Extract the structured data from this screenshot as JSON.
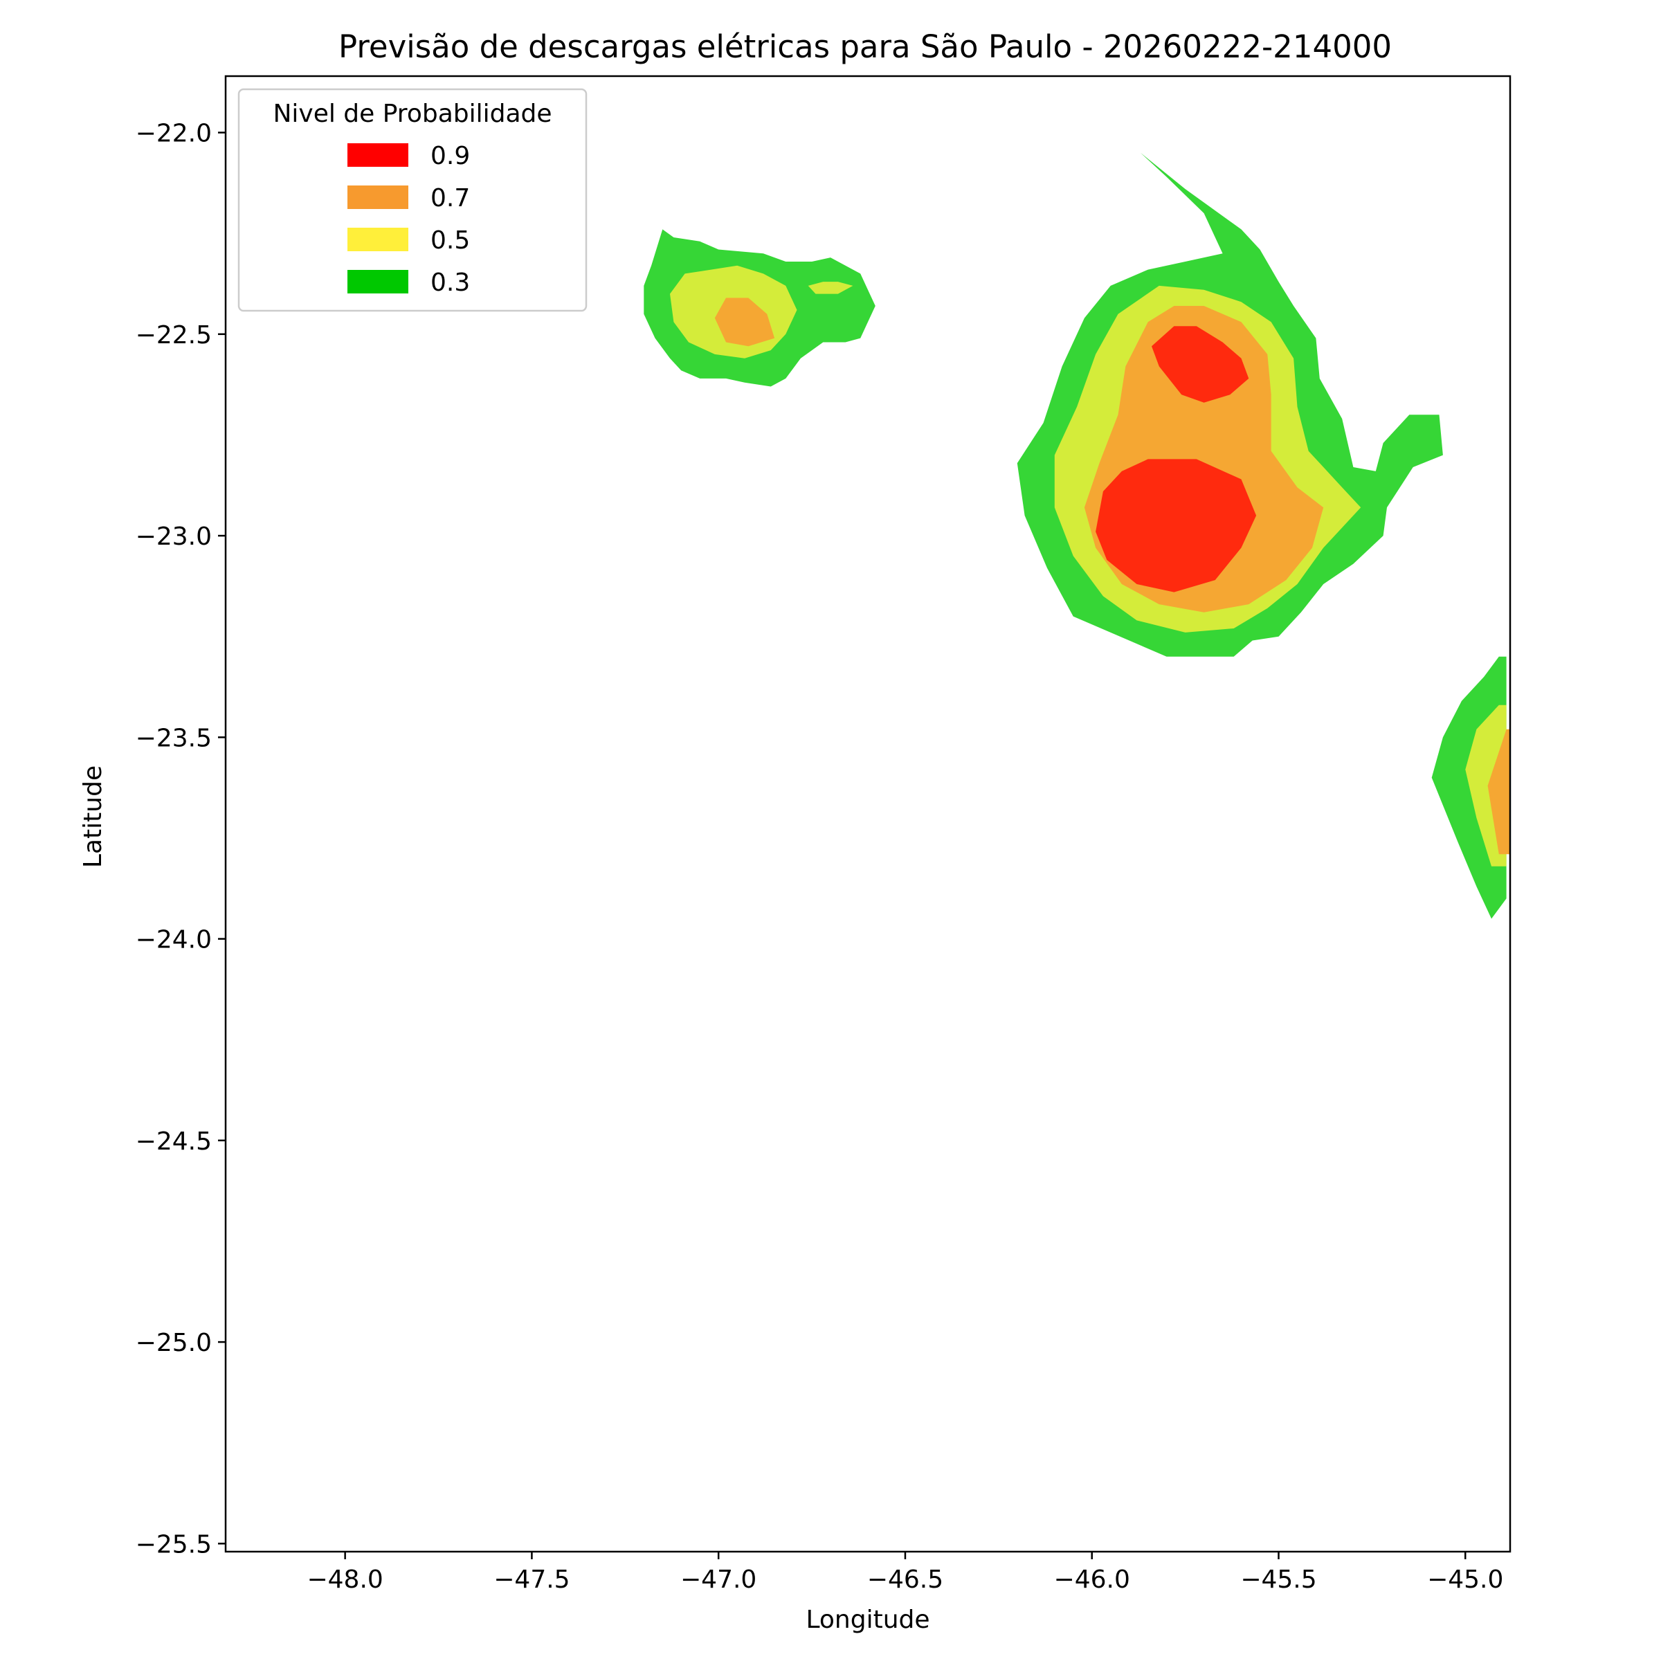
{
  "chart_data": {
    "type": "contour",
    "title": "Previsão de descargas elétricas para São Paulo - 20260222-214000",
    "xlabel": "Longitude",
    "ylabel": "Latitude",
    "xlim": [
      -48.32,
      -44.88
    ],
    "ylim": [
      -25.52,
      -21.86
    ],
    "xticks": [
      -48.0,
      -47.5,
      -47.0,
      -46.5,
      -46.0,
      -45.5,
      -45.0
    ],
    "xtick_labels": [
      "−48.0",
      "−47.5",
      "−47.0",
      "−46.5",
      "−46.0",
      "−45.5",
      "−45.0"
    ],
    "yticks": [
      -22.0,
      -22.5,
      -23.0,
      -23.5,
      -24.0,
      -24.5,
      -25.0,
      -25.5
    ],
    "ytick_labels": [
      "−22.0",
      "−22.5",
      "−23.0",
      "−23.5",
      "−24.0",
      "−24.5",
      "−25.0",
      "−25.5"
    ],
    "grid": false,
    "legend": {
      "title": "Nivel de Probabilidade",
      "placement": "top-left",
      "entries": [
        {
          "label": "0.9",
          "color": "#ff0000"
        },
        {
          "label": "0.7",
          "color": "#f79a2e"
        },
        {
          "label": "0.5",
          "color": "#ffef3a"
        },
        {
          "label": "0.3",
          "color": "#00c800"
        }
      ]
    },
    "level_fill_colors": {
      "0.3": "#36d636",
      "0.5": "#d4ec3a",
      "0.7": "#f5a733",
      "0.9": "#ff2a0e"
    },
    "regions": [
      {
        "name": "campinas-cell",
        "level": 0.3,
        "points": [
          [
            -47.15,
            -22.24
          ],
          [
            -47.12,
            -22.26
          ],
          [
            -47.05,
            -22.27
          ],
          [
            -47.0,
            -22.29
          ],
          [
            -46.88,
            -22.3
          ],
          [
            -46.82,
            -22.32
          ],
          [
            -46.75,
            -22.32
          ],
          [
            -46.7,
            -22.31
          ],
          [
            -46.62,
            -22.35
          ],
          [
            -46.6,
            -22.39
          ],
          [
            -46.58,
            -22.43
          ],
          [
            -46.6,
            -22.47
          ],
          [
            -46.62,
            -22.51
          ],
          [
            -46.66,
            -22.52
          ],
          [
            -46.72,
            -22.52
          ],
          [
            -46.78,
            -22.56
          ],
          [
            -46.82,
            -22.61
          ],
          [
            -46.86,
            -22.63
          ],
          [
            -46.93,
            -22.62
          ],
          [
            -46.98,
            -22.61
          ],
          [
            -47.05,
            -22.61
          ],
          [
            -47.1,
            -22.59
          ],
          [
            -47.13,
            -22.56
          ],
          [
            -47.17,
            -22.51
          ],
          [
            -47.2,
            -22.45
          ],
          [
            -47.2,
            -22.38
          ],
          [
            -47.18,
            -22.33
          ]
        ]
      },
      {
        "name": "campinas-cell",
        "level": 0.5,
        "points": [
          [
            -47.09,
            -22.35
          ],
          [
            -47.02,
            -22.34
          ],
          [
            -46.95,
            -22.33
          ],
          [
            -46.88,
            -22.35
          ],
          [
            -46.82,
            -22.38
          ],
          [
            -46.79,
            -22.44
          ],
          [
            -46.82,
            -22.5
          ],
          [
            -46.86,
            -22.54
          ],
          [
            -46.93,
            -22.56
          ],
          [
            -47.01,
            -22.55
          ],
          [
            -47.08,
            -22.52
          ],
          [
            -47.12,
            -22.47
          ],
          [
            -47.13,
            -22.4
          ]
        ]
      },
      {
        "name": "campinas-cell",
        "level": 0.5,
        "points": [
          [
            -46.76,
            -22.38
          ],
          [
            -46.72,
            -22.37
          ],
          [
            -46.68,
            -22.37
          ],
          [
            -46.64,
            -22.38
          ],
          [
            -46.68,
            -22.4
          ],
          [
            -46.74,
            -22.4
          ]
        ]
      },
      {
        "name": "campinas-cell",
        "level": 0.7,
        "points": [
          [
            -46.98,
            -22.41
          ],
          [
            -46.92,
            -22.41
          ],
          [
            -46.87,
            -22.45
          ],
          [
            -46.85,
            -22.51
          ],
          [
            -46.92,
            -22.53
          ],
          [
            -46.98,
            -22.52
          ],
          [
            -47.01,
            -22.46
          ]
        ]
      },
      {
        "name": "vale-cell",
        "level": 0.3,
        "points": [
          [
            -45.87,
            -22.05
          ],
          [
            -45.75,
            -22.14
          ],
          [
            -45.6,
            -22.24
          ],
          [
            -45.55,
            -22.29
          ],
          [
            -45.5,
            -22.37
          ],
          [
            -45.46,
            -22.43
          ],
          [
            -45.4,
            -22.51
          ],
          [
            -45.39,
            -22.61
          ],
          [
            -45.33,
            -22.71
          ],
          [
            -45.3,
            -22.83
          ],
          [
            -45.24,
            -22.84
          ],
          [
            -45.22,
            -22.77
          ],
          [
            -45.15,
            -22.7
          ],
          [
            -45.07,
            -22.7
          ],
          [
            -45.06,
            -22.8
          ],
          [
            -45.14,
            -22.83
          ],
          [
            -45.21,
            -22.93
          ],
          [
            -45.22,
            -23.0
          ],
          [
            -45.3,
            -23.07
          ],
          [
            -45.38,
            -23.12
          ],
          [
            -45.44,
            -23.19
          ],
          [
            -45.5,
            -23.25
          ],
          [
            -45.57,
            -23.26
          ],
          [
            -45.62,
            -23.3
          ],
          [
            -45.8,
            -23.3
          ],
          [
            -45.9,
            -23.26
          ],
          [
            -46.05,
            -23.2
          ],
          [
            -46.12,
            -23.08
          ],
          [
            -46.18,
            -22.95
          ],
          [
            -46.2,
            -22.82
          ],
          [
            -46.13,
            -22.72
          ],
          [
            -46.08,
            -22.58
          ],
          [
            -46.02,
            -22.46
          ],
          [
            -45.95,
            -22.38
          ],
          [
            -45.85,
            -22.34
          ],
          [
            -45.75,
            -22.32
          ],
          [
            -45.65,
            -22.3
          ],
          [
            -45.7,
            -22.2
          ],
          [
            -45.8,
            -22.11
          ]
        ]
      },
      {
        "name": "vale-cell",
        "level": 0.5,
        "points": [
          [
            -45.82,
            -22.38
          ],
          [
            -45.7,
            -22.39
          ],
          [
            -45.6,
            -22.42
          ],
          [
            -45.52,
            -22.47
          ],
          [
            -45.46,
            -22.56
          ],
          [
            -45.45,
            -22.68
          ],
          [
            -45.42,
            -22.79
          ],
          [
            -45.33,
            -22.88
          ],
          [
            -45.28,
            -22.93
          ],
          [
            -45.38,
            -23.03
          ],
          [
            -45.45,
            -23.12
          ],
          [
            -45.53,
            -23.18
          ],
          [
            -45.62,
            -23.23
          ],
          [
            -45.75,
            -23.24
          ],
          [
            -45.88,
            -23.21
          ],
          [
            -45.97,
            -23.15
          ],
          [
            -46.05,
            -23.05
          ],
          [
            -46.1,
            -22.93
          ],
          [
            -46.1,
            -22.8
          ],
          [
            -46.04,
            -22.68
          ],
          [
            -45.99,
            -22.55
          ],
          [
            -45.93,
            -22.45
          ]
        ]
      },
      {
        "name": "vale-cell",
        "level": 0.7,
        "points": [
          [
            -45.78,
            -22.43
          ],
          [
            -45.7,
            -22.43
          ],
          [
            -45.6,
            -22.47
          ],
          [
            -45.53,
            -22.55
          ],
          [
            -45.52,
            -22.65
          ],
          [
            -45.52,
            -22.79
          ],
          [
            -45.45,
            -22.88
          ],
          [
            -45.38,
            -22.93
          ],
          [
            -45.41,
            -23.03
          ],
          [
            -45.48,
            -23.11
          ],
          [
            -45.58,
            -23.17
          ],
          [
            -45.7,
            -23.19
          ],
          [
            -45.82,
            -23.17
          ],
          [
            -45.92,
            -23.12
          ],
          [
            -45.99,
            -23.03
          ],
          [
            -46.02,
            -22.93
          ],
          [
            -45.98,
            -22.82
          ],
          [
            -45.93,
            -22.7
          ],
          [
            -45.91,
            -22.58
          ],
          [
            -45.85,
            -22.47
          ]
        ]
      },
      {
        "name": "vale-cell",
        "level": 0.9,
        "points": [
          [
            -45.78,
            -22.48
          ],
          [
            -45.72,
            -22.48
          ],
          [
            -45.65,
            -22.52
          ],
          [
            -45.6,
            -22.56
          ],
          [
            -45.58,
            -22.61
          ],
          [
            -45.63,
            -22.65
          ],
          [
            -45.7,
            -22.67
          ],
          [
            -45.76,
            -22.65
          ],
          [
            -45.82,
            -22.58
          ],
          [
            -45.84,
            -22.53
          ]
        ]
      },
      {
        "name": "vale-cell",
        "level": 0.9,
        "points": [
          [
            -45.85,
            -22.81
          ],
          [
            -45.72,
            -22.81
          ],
          [
            -45.6,
            -22.86
          ],
          [
            -45.56,
            -22.95
          ],
          [
            -45.6,
            -23.03
          ],
          [
            -45.67,
            -23.11
          ],
          [
            -45.78,
            -23.14
          ],
          [
            -45.88,
            -23.12
          ],
          [
            -45.96,
            -23.06
          ],
          [
            -45.99,
            -22.99
          ],
          [
            -45.97,
            -22.89
          ],
          [
            -45.92,
            -22.84
          ]
        ]
      },
      {
        "name": "east-edge-cell",
        "level": 0.3,
        "points": [
          [
            -44.91,
            -23.3
          ],
          [
            -44.89,
            -23.3
          ],
          [
            -44.89,
            -23.9
          ],
          [
            -44.93,
            -23.95
          ],
          [
            -44.97,
            -23.87
          ],
          [
            -45.02,
            -23.76
          ],
          [
            -45.09,
            -23.6
          ],
          [
            -45.06,
            -23.5
          ],
          [
            -45.01,
            -23.41
          ],
          [
            -44.95,
            -23.35
          ]
        ]
      },
      {
        "name": "east-edge-cell",
        "level": 0.5,
        "points": [
          [
            -44.91,
            -23.42
          ],
          [
            -44.89,
            -23.42
          ],
          [
            -44.89,
            -23.82
          ],
          [
            -44.93,
            -23.82
          ],
          [
            -44.97,
            -23.7
          ],
          [
            -45.0,
            -23.58
          ],
          [
            -44.97,
            -23.48
          ]
        ]
      },
      {
        "name": "east-edge-cell",
        "level": 0.7,
        "points": [
          [
            -44.89,
            -23.48
          ],
          [
            -44.87,
            -23.48
          ],
          [
            -44.87,
            -23.79
          ],
          [
            -44.91,
            -23.79
          ],
          [
            -44.94,
            -23.62
          ]
        ]
      }
    ]
  }
}
